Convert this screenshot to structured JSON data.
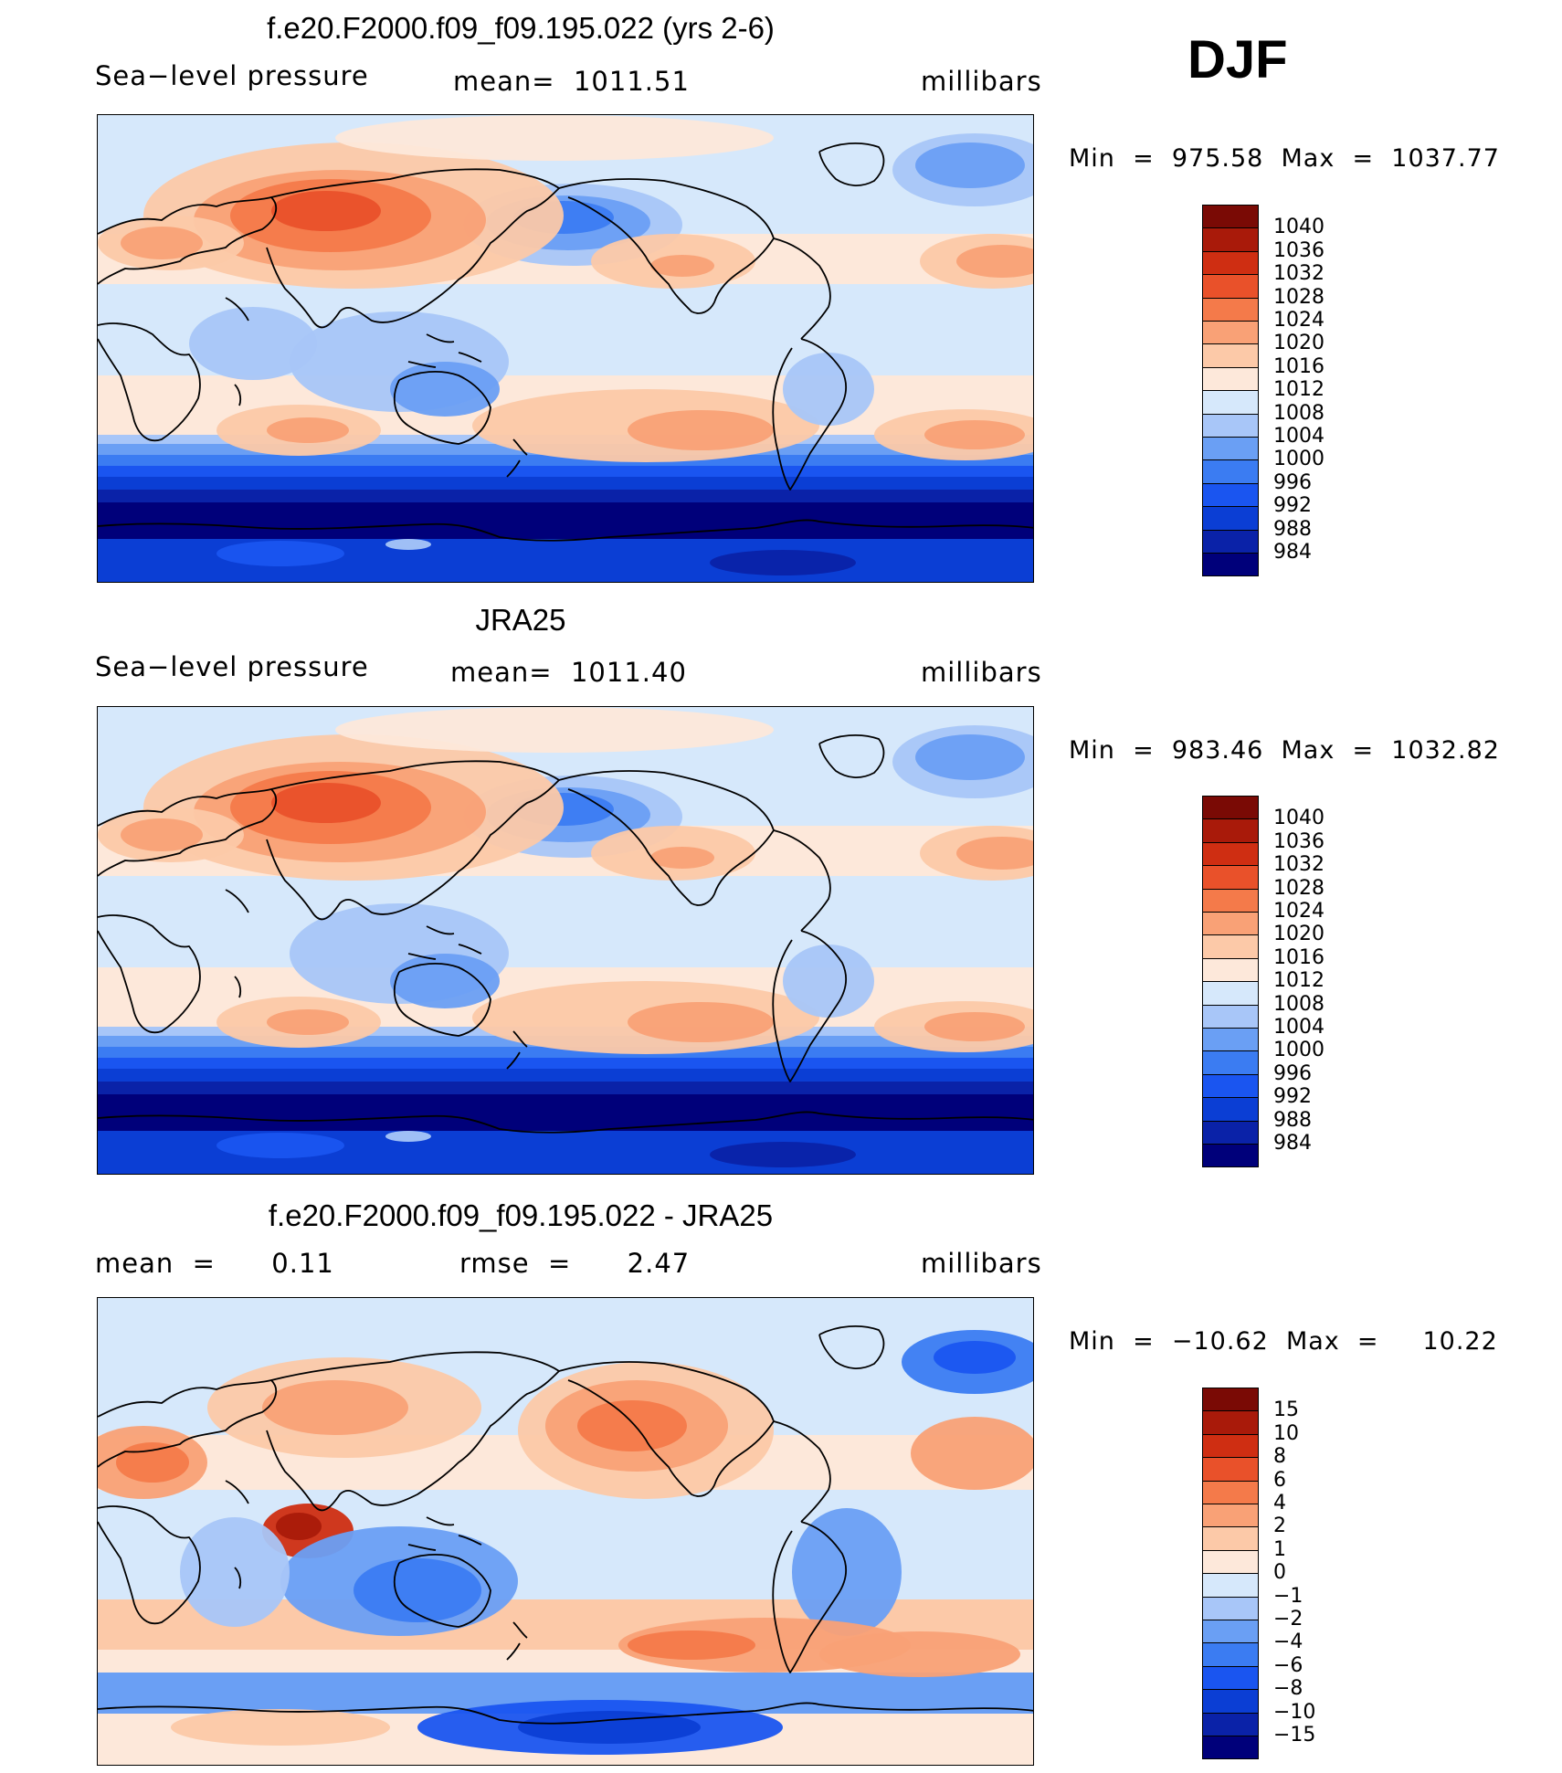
{
  "season": "DJF",
  "colors": {
    "abs_scale": [
      "#00007a",
      "#0a22a8",
      "#0b3ed4",
      "#1a55f0",
      "#3b7cf2",
      "#6a9ff4",
      "#a8c6f8",
      "#d6e8fb",
      "#fde8da",
      "#fcc9a8",
      "#f9a176",
      "#f47a4a",
      "#e9512a",
      "#cf2e12",
      "#a91a0a",
      "#7a0a05"
    ],
    "diff_scale": [
      "#00007a",
      "#0a22a8",
      "#0b3ed4",
      "#1a55f0",
      "#3b7cf2",
      "#6a9ff4",
      "#a8c6f8",
      "#d6e8fb",
      "#fde8da",
      "#fcc9a8",
      "#f9a176",
      "#f47a4a",
      "#e9512a",
      "#cf2e12",
      "#a91a0a",
      "#7a0a05"
    ]
  },
  "panels": [
    {
      "title": "f.e20.F2000.f09_f09.195.022 (yrs 2-6)",
      "left_label": "Sea−level pressure",
      "center_label": "mean=  1011.51",
      "right_label": "millibars",
      "minmax": "Min  =  975.58  Max  =  1037.77",
      "colorbar_labels": [
        "1040",
        "1036",
        "1032",
        "1028",
        "1024",
        "1020",
        "1016",
        "1012",
        "1008",
        "1004",
        "1000",
        "996",
        "992",
        "988",
        "984"
      ]
    },
    {
      "title": "JRA25",
      "left_label": "Sea−level pressure",
      "center_label": "mean=  1011.40",
      "right_label": "millibars",
      "minmax": "Min  =  983.46  Max  =  1032.82",
      "colorbar_labels": [
        "1040",
        "1036",
        "1032",
        "1028",
        "1024",
        "1020",
        "1016",
        "1012",
        "1008",
        "1004",
        "1000",
        "996",
        "992",
        "988",
        "984"
      ]
    },
    {
      "title": "f.e20.F2000.f09_f09.195.022 - JRA25",
      "left_label": "mean  =      0.11",
      "center_label": "rmse  =      2.47",
      "right_label": "millibars",
      "minmax": "Min  =  −10.62  Max  =     10.22",
      "colorbar_labels": [
        "15",
        "10",
        "8",
        "6",
        "4",
        "2",
        "1",
        "0",
        "−1",
        "−2",
        "−4",
        "−6",
        "−8",
        "−10",
        "−15"
      ]
    }
  ]
}
